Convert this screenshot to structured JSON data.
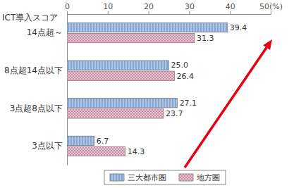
{
  "chart_data": {
    "type": "bar",
    "orientation": "horizontal",
    "ylabel": "ICT導入スコア",
    "categories": [
      "14点超～",
      "8点超14点以下",
      "3点超8点以下",
      "3点以下"
    ],
    "series": [
      {
        "name": "三大都市圏",
        "color": "#a9c6ee",
        "values": [
          39.4,
          25.0,
          27.1,
          6.7
        ],
        "value_labels": [
          "39.4",
          "25.0",
          "27.1",
          "6.7"
        ]
      },
      {
        "name": "地方圏",
        "color": "#f6c3d6",
        "values": [
          31.3,
          26.4,
          23.7,
          14.3
        ],
        "value_labels": [
          "31.3",
          "26.4",
          "23.7",
          "14.3"
        ]
      }
    ],
    "xlim": [
      0,
      50
    ],
    "xticks": [
      0,
      10,
      20,
      30,
      40,
      {
        "value": 50,
        "label": "50(%)"
      }
    ],
    "data_labels": true,
    "legend": "bottom",
    "grid": false
  }
}
